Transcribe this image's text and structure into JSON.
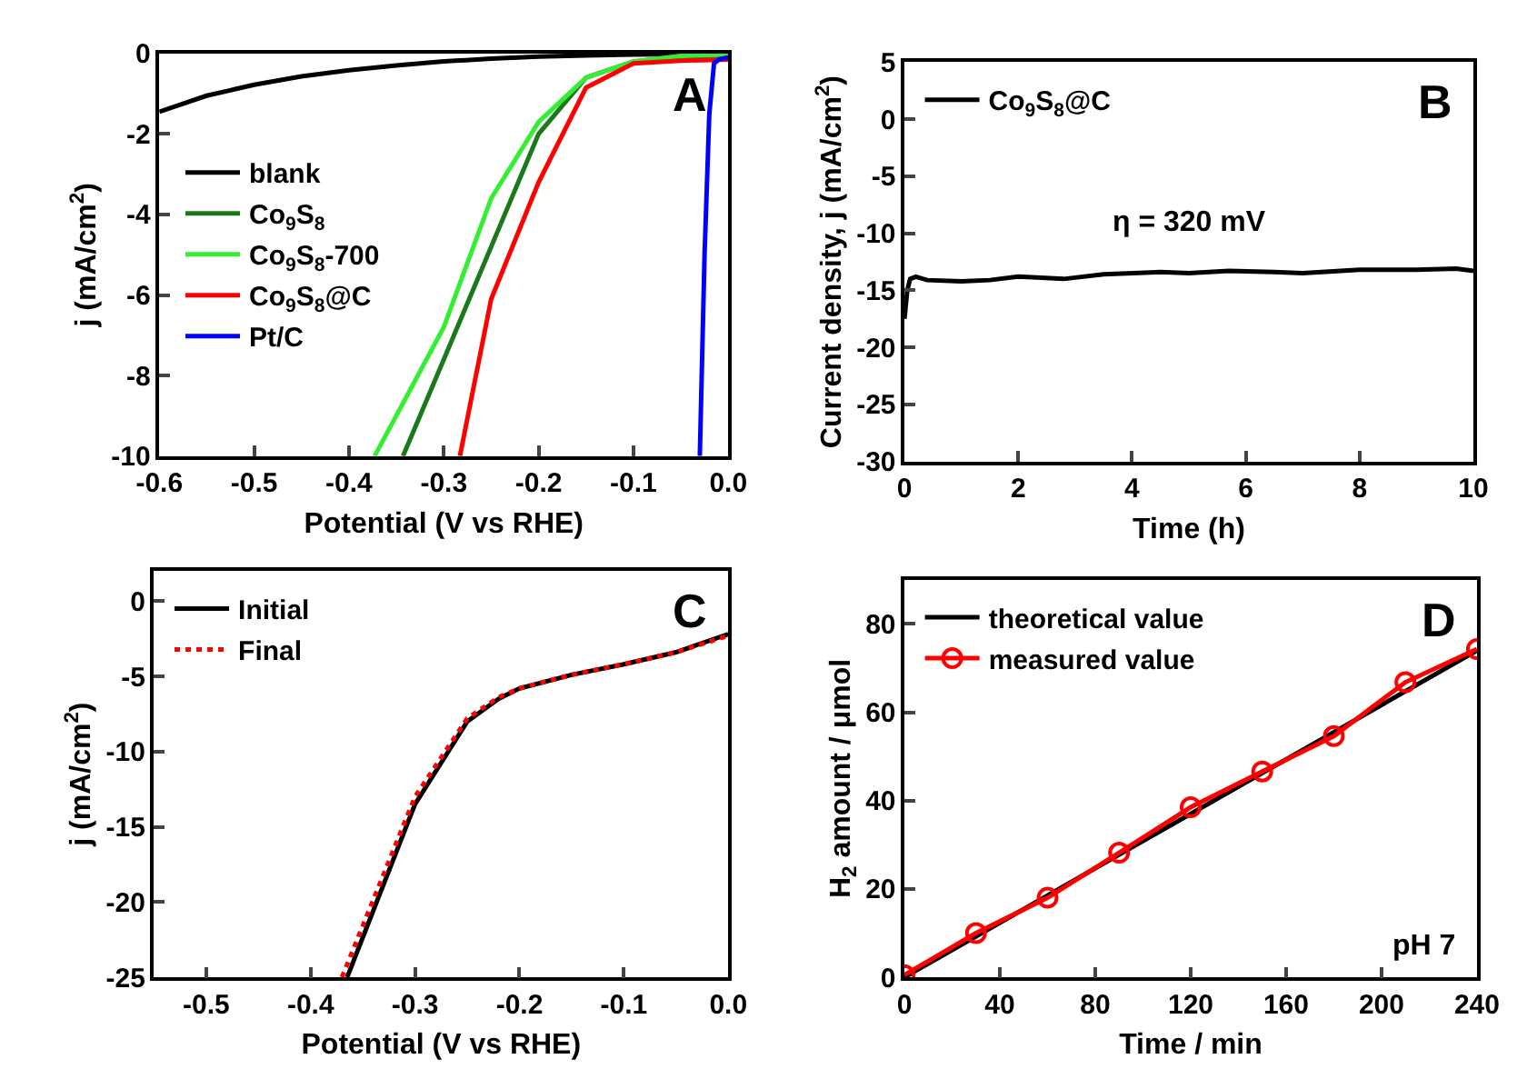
{
  "chart_data": [
    {
      "type": "line",
      "xlabel": "Potential (V vs RHE)",
      "ylabel": "j (mA/cm$^{2}$)",
      "xlim": [
        -0.6,
        0
      ],
      "ylim": [
        -10,
        0
      ],
      "xticks": [
        -0.6,
        -0.5,
        -0.4,
        -0.3,
        -0.2,
        -0.1,
        {
          "value": 0,
          "label": "0.0"
        }
      ],
      "yticks": [
        -10,
        -8,
        -6,
        -4,
        -2,
        0
      ],
      "legend": "left",
      "annotations": [
        "A"
      ],
      "series": [
        {
          "name": "blank",
          "color": "#000000",
          "x": [
            -0.6,
            -0.55,
            -0.5,
            -0.45,
            -0.4,
            -0.35,
            -0.3,
            -0.25,
            -0.2,
            -0.15,
            -0.1,
            0
          ],
          "values": [
            -1.45,
            -1.05,
            -0.78,
            -0.57,
            -0.42,
            -0.3,
            -0.2,
            -0.13,
            -0.08,
            -0.05,
            -0.03,
            -0.01
          ]
        },
        {
          "name": "Co$_{9}$S$_{8}$",
          "color": "#1a7a1a",
          "x": [
            -0.343,
            -0.3,
            -0.25,
            -0.2,
            -0.15,
            -0.1,
            -0.05,
            0
          ],
          "values": [
            -10,
            -7.6,
            -4.8,
            -2,
            -0.6,
            -0.2,
            -0.08,
            -0.05
          ]
        },
        {
          "name": "Co$_{9}$S$_{8}$-700",
          "color": "#33ee33",
          "x": [
            -0.373,
            -0.3,
            -0.25,
            -0.2,
            -0.15,
            -0.1,
            -0.05,
            0
          ],
          "values": [
            -10,
            -6.8,
            -3.6,
            -1.7,
            -0.6,
            -0.2,
            -0.06,
            -0.03
          ]
        },
        {
          "name": "Co$_{9}$S$_{8}$@C",
          "color": "#ff0000",
          "x": [
            -0.283,
            -0.25,
            -0.2,
            -0.15,
            -0.1,
            -0.05,
            0
          ],
          "values": [
            -10,
            -6.1,
            -3.2,
            -0.85,
            -0.25,
            -0.18,
            -0.15
          ]
        },
        {
          "name": "Pt/C",
          "color": "#0000ff",
          "x": [
            -0.03,
            -0.025,
            -0.02,
            -0.015,
            -0.01,
            0
          ],
          "values": [
            -10,
            -5,
            -1.5,
            -0.25,
            -0.15,
            -0.1
          ]
        }
      ]
    },
    {
      "type": "line",
      "xlabel": "Time (h)",
      "ylabel": "Current density, j (mA/cm$^{2}$)",
      "xlim": [
        0,
        10
      ],
      "ylim": [
        -30,
        5
      ],
      "xticks": [
        0,
        2,
        4,
        6,
        8,
        10
      ],
      "yticks": [
        -30,
        -25,
        -20,
        -15,
        -10,
        -5,
        0,
        5
      ],
      "legend": "top left",
      "annotations": [
        "B",
        "η = 320 mV"
      ],
      "series": [
        {
          "name": "Co$_{9}$S$_{8}$@C",
          "color": "#000000",
          "x": [
            0,
            0.05,
            0.1,
            0.2,
            0.4,
            1,
            1.5,
            2,
            2.8,
            3.5,
            4.5,
            5,
            5.7,
            6.5,
            7,
            8,
            9,
            9.7,
            10
          ],
          "values": [
            -17.5,
            -15,
            -14,
            -13.8,
            -14.1,
            -14.2,
            -14.1,
            -13.8,
            -14,
            -13.6,
            -13.4,
            -13.5,
            -13.3,
            -13.4,
            -13.5,
            -13.2,
            -13.2,
            -13.1,
            -13.3
          ]
        }
      ]
    },
    {
      "type": "line",
      "xlabel": "Potential (V vs RHE)",
      "ylabel": "j (mA/cm$^{2}$)",
      "xlim": [
        -0.55,
        0
      ],
      "ylim": [
        -25,
        2
      ],
      "xticks": [
        -0.5,
        -0.4,
        -0.3,
        -0.2,
        -0.1,
        {
          "value": 0,
          "label": "0.0"
        }
      ],
      "yticks": [
        -25,
        -20,
        -15,
        -10,
        -5,
        0
      ],
      "legend": "top left",
      "annotations": [
        "C"
      ],
      "series": [
        {
          "name": "Initial",
          "color": "#000000",
          "line_style": "solid",
          "x": [
            -0.365,
            -0.3,
            -0.25,
            -0.22,
            -0.2,
            -0.15,
            -0.1,
            -0.05,
            0
          ],
          "values": [
            -25,
            -13.5,
            -8,
            -6.5,
            -5.8,
            -4.9,
            -4.2,
            -3.4,
            -2.2
          ]
        },
        {
          "name": "Final",
          "color": "#ff0000",
          "line_style": "dotted",
          "x": [
            -0.37,
            -0.3,
            -0.25,
            -0.22,
            -0.2,
            -0.15,
            -0.1,
            -0.05,
            0
          ],
          "values": [
            -25,
            -13,
            -7.8,
            -6.4,
            -5.8,
            -4.9,
            -4.2,
            -3.4,
            -2.3
          ]
        }
      ]
    },
    {
      "type": "line",
      "xlabel": "Time / min",
      "ylabel": "H$_{2}$ amount / μmol",
      "xlim": [
        0,
        240
      ],
      "ylim": [
        0,
        90
      ],
      "xticks": [
        0,
        40,
        80,
        120,
        160,
        200,
        240
      ],
      "yticks": [
        0,
        20,
        40,
        60,
        80
      ],
      "legend": "top left",
      "annotations": [
        "D",
        "pH 7"
      ],
      "series": [
        {
          "name": "theoretical value",
          "color": "#000000",
          "marker": "none",
          "x": [
            0,
            240
          ],
          "values": [
            0,
            74
          ]
        },
        {
          "name": "measured value",
          "color": "#ff0000",
          "marker": "circle",
          "x": [
            0,
            30,
            60,
            90,
            120,
            150,
            180,
            210,
            240
          ],
          "values": [
            0.5,
            10,
            18,
            28.2,
            38.5,
            46.6,
            54.6,
            66.8,
            74.3
          ]
        }
      ]
    }
  ]
}
